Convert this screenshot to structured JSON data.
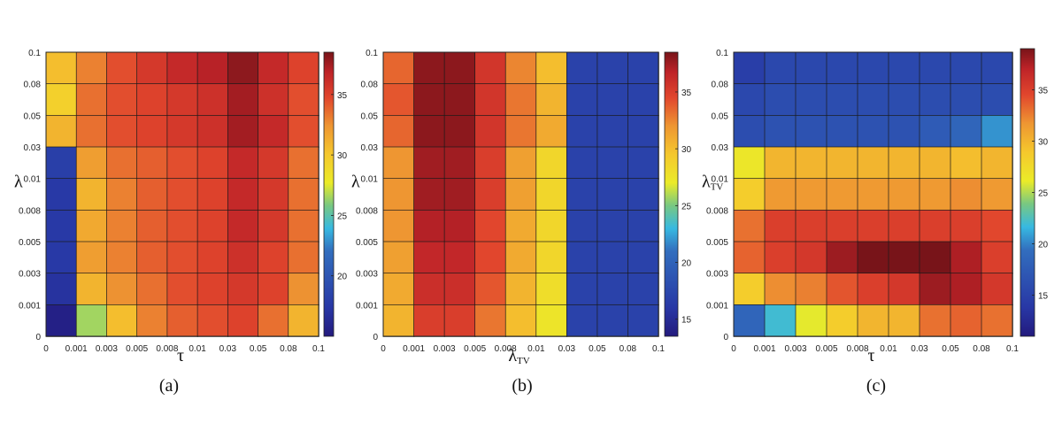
{
  "chart_data": [
    {
      "type": "heatmap",
      "panel": "(a)",
      "xlabel": "τ",
      "xlabel_sub": "",
      "ylabel": "λ",
      "ylabel_sub": "",
      "x_ticks": [
        "0",
        "0.001",
        "0.003",
        "0.005",
        "0.008",
        "0.01",
        "0.03",
        "0.05",
        "0.08",
        "0.1"
      ],
      "y_ticks": [
        "0",
        "0.001",
        "0.003",
        "0.005",
        "0.008",
        "0.01",
        "0.03",
        "0.05",
        "0.08",
        "0.1"
      ],
      "colorbar_ticks": [
        20,
        25,
        30,
        35
      ],
      "vmin": 15,
      "vmax": 38.5,
      "rows_top_to_bottom": [
        [
          30.5,
          33,
          34.5,
          35.5,
          36.5,
          37,
          38,
          36.5,
          35
        ],
        [
          29.5,
          33.5,
          34.5,
          35,
          35.5,
          36,
          37.5,
          36,
          34.5
        ],
        [
          31,
          33.5,
          34.5,
          35,
          35.5,
          36,
          37.5,
          36.5,
          34.5
        ],
        [
          18,
          32,
          33.5,
          34,
          34.5,
          35,
          36.5,
          35.5,
          33.5
        ],
        [
          17.5,
          31,
          33,
          34,
          34.5,
          35,
          36.5,
          35.5,
          33.5
        ],
        [
          17.5,
          31.5,
          33,
          34,
          34.5,
          35,
          36.5,
          35.5,
          33.5
        ],
        [
          17.5,
          32,
          33,
          34,
          34.5,
          35,
          36,
          35,
          33.5
        ],
        [
          17,
          31,
          32.5,
          33.5,
          34.5,
          35,
          35.5,
          35,
          32.5
        ],
        [
          15.5,
          26.5,
          30.5,
          33,
          34,
          34.5,
          35,
          33.5,
          31
        ]
      ],
      "caption": "(a)"
    },
    {
      "type": "heatmap",
      "panel": "(b)",
      "xlabel": "λ",
      "xlabel_sub": "TV",
      "ylabel": "λ",
      "ylabel_sub": "",
      "x_ticks": [
        "0",
        "0.001",
        "0.003",
        "0.005",
        "0.008",
        "0.01",
        "0.03",
        "0.05",
        "0.08",
        "0.1"
      ],
      "y_ticks": [
        "0",
        "0.001",
        "0.003",
        "0.005",
        "0.008",
        "0.01",
        "0.03",
        "0.05",
        "0.08",
        "0.1"
      ],
      "colorbar_ticks": [
        15,
        20,
        25,
        30,
        35
      ],
      "vmin": 13.5,
      "vmax": 38.5,
      "rows_top_to_bottom": [
        [
          33.5,
          38,
          38,
          35.5,
          32.5,
          30,
          17,
          17,
          17
        ],
        [
          34,
          38,
          38,
          35.5,
          33,
          30.5,
          17,
          17,
          17
        ],
        [
          33.5,
          38,
          38,
          35.5,
          33,
          31,
          17,
          17,
          17
        ],
        [
          32,
          37.5,
          37.5,
          35,
          31.5,
          28.5,
          17,
          17,
          17
        ],
        [
          32,
          37.5,
          37.5,
          35,
          31.5,
          28.5,
          17,
          17,
          17
        ],
        [
          32,
          37,
          37,
          34.5,
          31,
          28.5,
          17,
          17,
          17
        ],
        [
          31.5,
          36.5,
          36.5,
          34.5,
          31,
          28.5,
          17,
          17,
          17
        ],
        [
          31,
          36,
          36,
          34,
          30.5,
          28,
          17,
          17,
          17
        ],
        [
          30.5,
          35,
          35,
          33,
          30,
          27.5,
          17,
          17,
          17
        ]
      ],
      "caption": "(b)"
    },
    {
      "type": "heatmap",
      "panel": "(c)",
      "xlabel": "τ",
      "xlabel_sub": "",
      "ylabel": "λ",
      "ylabel_sub": "TV",
      "x_ticks": [
        "0",
        "0.001",
        "0.003",
        "0.005",
        "0.008",
        "0.01",
        "0.03",
        "0.05",
        "0.08",
        "0.1"
      ],
      "y_ticks": [
        "0",
        "0.001",
        "0.003",
        "0.005",
        "0.008",
        "0.01",
        "0.03",
        "0.05",
        "0.08",
        "0.1"
      ],
      "colorbar_ticks": [
        15,
        20,
        25,
        30,
        35
      ],
      "vmin": 11,
      "vmax": 39,
      "rows_top_to_bottom": [
        [
          14.5,
          15.5,
          15.5,
          15.5,
          15.5,
          15.5,
          15.5,
          15.5,
          15.5
        ],
        [
          15.5,
          16,
          16,
          16,
          16,
          16,
          16,
          16,
          16
        ],
        [
          16,
          16.5,
          16.5,
          16.5,
          16.5,
          16.5,
          17.5,
          18.5,
          20.5
        ],
        [
          26.5,
          30,
          30,
          30,
          30,
          30,
          30,
          29.5,
          30
        ],
        [
          28.5,
          31.5,
          31.5,
          31.5,
          31.5,
          31.5,
          31.5,
          32,
          31.5
        ],
        [
          33,
          35,
          35,
          35,
          35,
          35,
          35,
          35,
          34.5
        ],
        [
          33.5,
          35,
          35.5,
          38,
          39,
          39,
          39,
          37.5,
          35
        ],
        [
          28.5,
          32,
          32.5,
          34,
          35,
          35.5,
          38,
          37.5,
          35.5
        ],
        [
          18.5,
          22,
          26,
          28.5,
          30,
          30,
          33,
          33.5,
          33
        ]
      ],
      "caption": "(c)"
    }
  ]
}
